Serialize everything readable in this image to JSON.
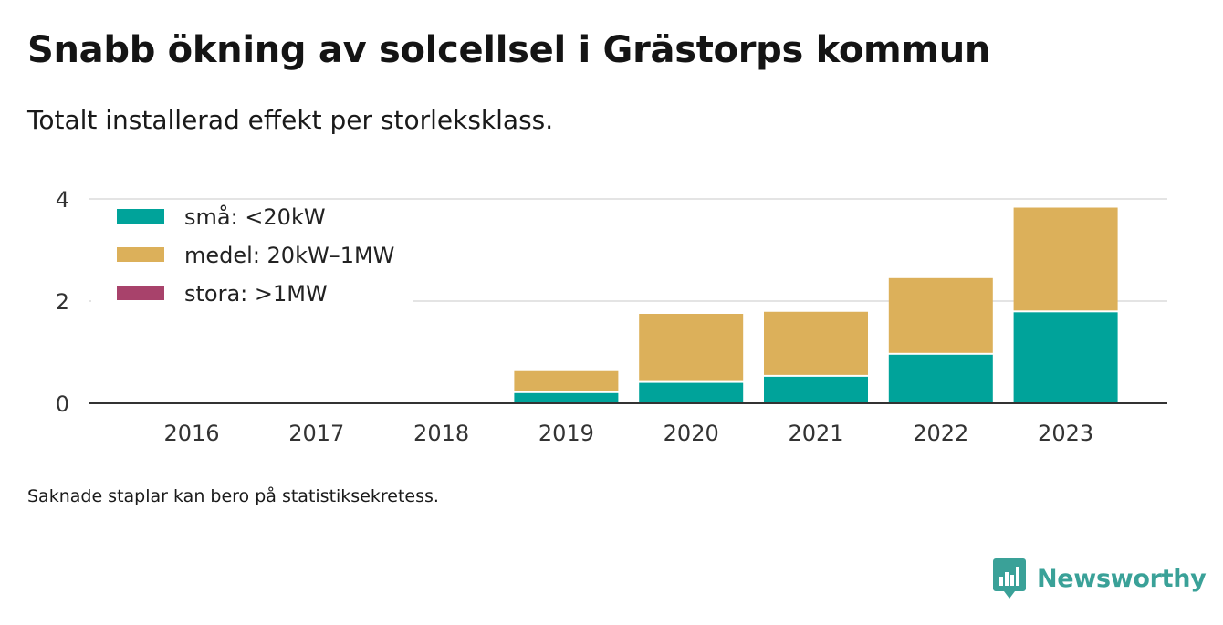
{
  "header": {
    "title": "Snabb ökning av solcellsel i Grästorps kommun",
    "subtitle": "Totalt installerad effekt per storleksklass."
  },
  "footer": {
    "note": "Saknade staplar kan bero på statistiksekretess.",
    "brand": "Newsworthy"
  },
  "colors": {
    "sma": "#00a39a",
    "medel": "#dcb05a",
    "stora": "#a8426b",
    "grid": "#dcdcdc",
    "axis": "#333333",
    "brand": "#3aa198"
  },
  "chart_data": {
    "type": "bar",
    "stacked": true,
    "categories": [
      "2016",
      "2017",
      "2018",
      "2019",
      "2020",
      "2021",
      "2022",
      "2023"
    ],
    "series": [
      {
        "name": "små: <20kW",
        "color": "#00a39a",
        "values": [
          0,
          0,
          0,
          0.2,
          0.4,
          0.52,
          0.95,
          1.78
        ]
      },
      {
        "name": "medel: 20kW–1MW",
        "color": "#dcb05a",
        "values": [
          0,
          0,
          0,
          0.43,
          1.35,
          1.27,
          1.5,
          2.05
        ]
      },
      {
        "name": "stora: >1MW",
        "color": "#a8426b",
        "values": [
          0,
          0,
          0,
          0,
          0,
          0,
          0,
          0
        ]
      }
    ],
    "ylim": [
      0,
      4
    ],
    "yticks": [
      "0",
      "2",
      "4"
    ],
    "grid": true,
    "legend_position": "top-left"
  }
}
